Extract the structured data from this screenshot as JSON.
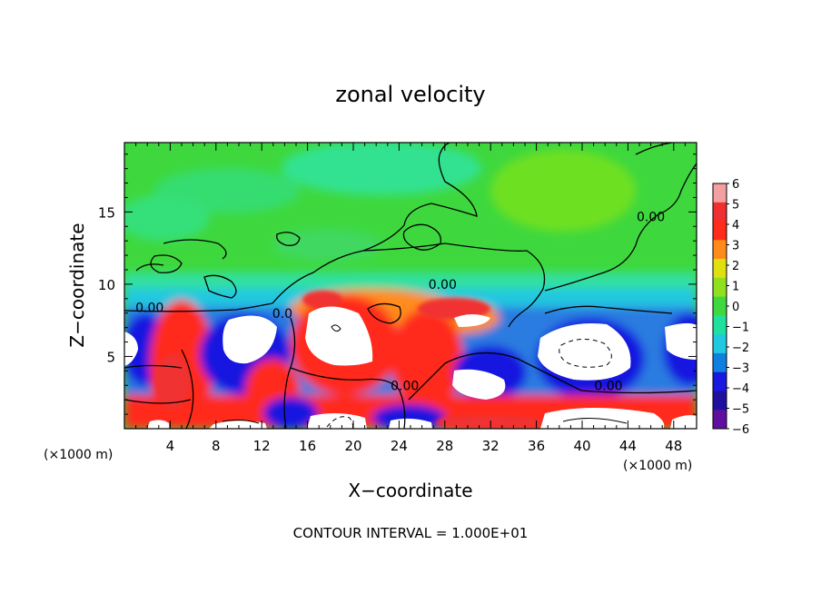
{
  "chart_data": {
    "type": "heatmap",
    "title": "zonal velocity",
    "xlabel": "X−coordinate",
    "ylabel": "Z−coordinate",
    "x_unit_left": "(×1000 m)",
    "x_unit_right": "(×1000 m)",
    "xlim": [
      0,
      50
    ],
    "ylim": [
      0,
      19.8
    ],
    "x_ticks": [
      4,
      8,
      12,
      16,
      20,
      24,
      28,
      32,
      36,
      40,
      44,
      48
    ],
    "x_tick_labels": [
      "4",
      "8",
      "12",
      "16",
      "20",
      "24",
      "28",
      "32",
      "36",
      "40",
      "44",
      "48"
    ],
    "y_ticks": [
      5,
      10,
      15
    ],
    "y_tick_labels": [
      "5",
      "10",
      "15"
    ],
    "colorbar": {
      "levels": [
        6,
        5,
        4,
        3,
        2,
        1,
        0,
        -1,
        -2,
        -3,
        -4,
        -5,
        -6
      ],
      "labels": [
        "6",
        "5",
        "4",
        "3",
        "2",
        "1",
        "0",
        "−1",
        "−2",
        "−3",
        "−4",
        "−5",
        "−6"
      ],
      "colors": [
        "#f5a0a0",
        "#f03030",
        "#ff2a1a",
        "#ff8c1a",
        "#e0e010",
        "#90e020",
        "#40d840",
        "#20e0a0",
        "#20c8e0",
        "#1080e0",
        "#1818e0",
        "#2010a0",
        "#6010a0"
      ]
    },
    "contour_labels": [
      {
        "text": "0.00",
        "x": 2.2,
        "y": 8.2
      },
      {
        "text": "0.00",
        "x": 27.8,
        "y": 9.8
      },
      {
        "text": "0.00",
        "x": 24.5,
        "y": 2.8
      },
      {
        "text": "0.00",
        "x": 42.3,
        "y": 2.8
      },
      {
        "text": "0.00",
        "x": 46.0,
        "y": 14.5
      },
      {
        "text": "0.0",
        "x": 13.8,
        "y": 7.8
      }
    ],
    "footer": "CONTOUR INTERVAL = 1.000E+01"
  }
}
